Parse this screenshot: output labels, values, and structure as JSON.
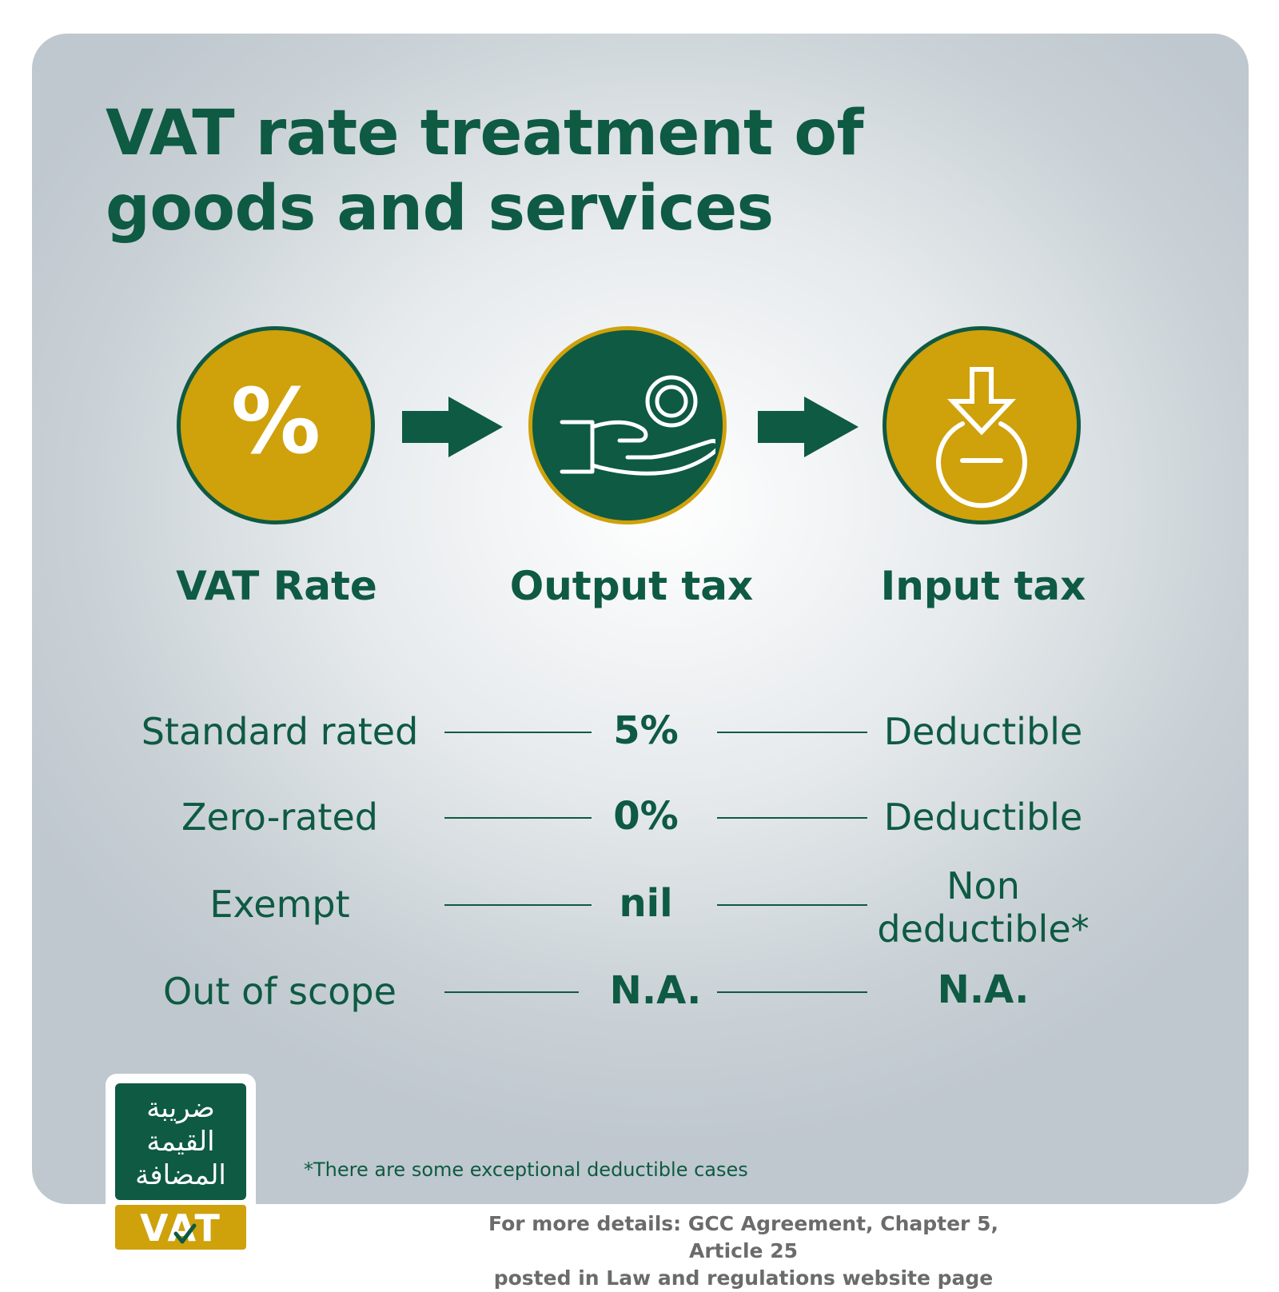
{
  "title": {
    "line1": "VAT rate treatment of",
    "line2": "goods and services"
  },
  "colors": {
    "green": "#0e5a43",
    "gold": "#cfa10b",
    "gray_text": "#6b6b6b"
  },
  "columns": [
    {
      "label": "VAT Rate",
      "icon": "percent-icon"
    },
    {
      "label": "Output tax",
      "icon": "hand-receiving-coin-icon"
    },
    {
      "label": "Input tax",
      "icon": "deduct-arrow-icon"
    }
  ],
  "percent_symbol": "%",
  "rows": [
    {
      "category": "Standard rated",
      "output": "5%",
      "input": "Deductible"
    },
    {
      "category": "Zero-rated",
      "output": "0%",
      "input": "Deductible"
    },
    {
      "category": "Exempt",
      "output": "nil",
      "input_line1": "Non",
      "input_line2": "deductible*"
    },
    {
      "category": "Out of scope",
      "output": "N.A.",
      "input": "N.A."
    }
  ],
  "footnote": "*There are some exceptional deductible cases",
  "source": {
    "line1": "For more details: GCC Agreement, Chapter 5, Article 25",
    "line2": "posted in Law and regulations website page"
  },
  "logo": {
    "arabic_line1": "ضريبة",
    "arabic_line2": "القيمة",
    "arabic_line3": "المضافة",
    "vat": "VAT"
  }
}
